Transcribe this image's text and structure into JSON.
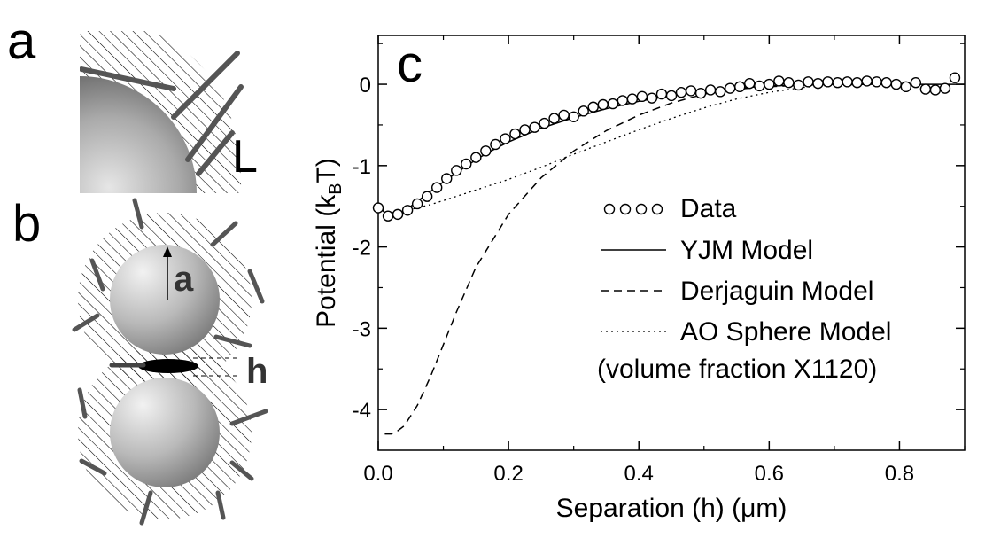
{
  "panels": {
    "a": {
      "letter": "a",
      "label": "L"
    },
    "b": {
      "letter": "b",
      "radius_label": "a",
      "gap_label": "h"
    },
    "c": {
      "letter": "c"
    }
  },
  "chart_data": {
    "type": "line",
    "title": "",
    "xlabel_pre": "Separation (h)  (",
    "xlabel_unit": "μm",
    "xlabel_post": ")",
    "ylabel_pre": "Potential (k",
    "ylabel_sub": "B",
    "ylabel_post": "T)",
    "xlim": [
      0.0,
      0.9
    ],
    "ylim": [
      -4.5,
      0.6
    ],
    "xticks": [
      0.0,
      0.2,
      0.4,
      0.6,
      0.8
    ],
    "xtick_labels": [
      "0.0",
      "0.2",
      "0.4",
      "0.6",
      "0.8"
    ],
    "yticks": [
      0,
      -1,
      -2,
      -3,
      -4
    ],
    "ytick_labels": [
      "0",
      "-1",
      "-2",
      "-3",
      "-4"
    ],
    "grid": false,
    "legend_position": "right",
    "legend_note": "(volume fraction X1120)",
    "series": [
      {
        "name": "Data",
        "style": "circles",
        "x": [
          0.0,
          0.015,
          0.03,
          0.045,
          0.06,
          0.075,
          0.09,
          0.105,
          0.12,
          0.135,
          0.15,
          0.165,
          0.18,
          0.195,
          0.21,
          0.225,
          0.24,
          0.255,
          0.27,
          0.285,
          0.3,
          0.315,
          0.33,
          0.345,
          0.36,
          0.375,
          0.39,
          0.405,
          0.42,
          0.435,
          0.45,
          0.465,
          0.48,
          0.495,
          0.51,
          0.525,
          0.54,
          0.555,
          0.57,
          0.585,
          0.6,
          0.615,
          0.63,
          0.645,
          0.66,
          0.675,
          0.69,
          0.705,
          0.72,
          0.735,
          0.75,
          0.765,
          0.78,
          0.795,
          0.81,
          0.825,
          0.84,
          0.855,
          0.87,
          0.885
        ],
        "y": [
          -1.52,
          -1.62,
          -1.6,
          -1.55,
          -1.47,
          -1.38,
          -1.27,
          -1.16,
          -1.06,
          -0.98,
          -0.9,
          -0.82,
          -0.74,
          -0.67,
          -0.61,
          -0.56,
          -0.53,
          -0.48,
          -0.42,
          -0.38,
          -0.4,
          -0.33,
          -0.28,
          -0.25,
          -0.24,
          -0.2,
          -0.18,
          -0.15,
          -0.17,
          -0.12,
          -0.14,
          -0.1,
          -0.08,
          -0.11,
          -0.07,
          -0.09,
          -0.05,
          -0.03,
          0.01,
          -0.02,
          0.0,
          0.04,
          0.02,
          -0.01,
          0.03,
          0.01,
          0.03,
          0.02,
          0.03,
          0.02,
          0.04,
          0.03,
          0.02,
          0.0,
          -0.03,
          0.02,
          -0.06,
          -0.07,
          -0.05,
          0.08
        ]
      },
      {
        "name": "YJM Model",
        "style": "solid",
        "x": [
          0.0,
          0.01,
          0.02,
          0.03,
          0.04,
          0.05,
          0.06,
          0.08,
          0.1,
          0.12,
          0.14,
          0.16,
          0.18,
          0.2,
          0.25,
          0.3,
          0.35,
          0.4,
          0.45,
          0.5,
          0.55,
          0.6,
          0.65,
          0.7,
          0.75,
          0.8,
          0.85,
          0.9
        ],
        "y": [
          -1.5,
          -1.58,
          -1.6,
          -1.59,
          -1.55,
          -1.5,
          -1.44,
          -1.32,
          -1.2,
          -1.09,
          -0.98,
          -0.88,
          -0.79,
          -0.71,
          -0.54,
          -0.41,
          -0.3,
          -0.21,
          -0.14,
          -0.09,
          -0.05,
          -0.02,
          -0.01,
          0.0,
          0.0,
          0.0,
          0.0,
          0.0
        ]
      },
      {
        "name": "Derjaguin Model",
        "style": "dashed",
        "x": [
          0.01,
          0.02,
          0.03,
          0.04,
          0.06,
          0.08,
          0.1,
          0.12,
          0.15,
          0.2,
          0.25,
          0.3,
          0.35,
          0.4,
          0.45,
          0.5,
          0.55,
          0.6,
          0.65,
          0.7,
          0.75
        ],
        "y": [
          -4.3,
          -4.3,
          -4.26,
          -4.2,
          -3.95,
          -3.6,
          -3.2,
          -2.8,
          -2.25,
          -1.6,
          -1.15,
          -0.82,
          -0.57,
          -0.38,
          -0.23,
          -0.12,
          -0.06,
          -0.03,
          -0.01,
          0.0,
          0.0
        ]
      },
      {
        "name": "AO Sphere Model",
        "style": "dotted",
        "x": [
          0.0,
          0.01,
          0.02,
          0.04,
          0.06,
          0.08,
          0.1,
          0.15,
          0.2,
          0.25,
          0.3,
          0.35,
          0.4,
          0.45,
          0.5,
          0.55,
          0.6,
          0.65,
          0.7,
          0.75
        ],
        "y": [
          -1.5,
          -1.56,
          -1.58,
          -1.56,
          -1.52,
          -1.48,
          -1.43,
          -1.3,
          -1.17,
          -1.02,
          -0.86,
          -0.71,
          -0.56,
          -0.42,
          -0.29,
          -0.18,
          -0.1,
          -0.04,
          -0.01,
          0.0
        ]
      }
    ]
  }
}
